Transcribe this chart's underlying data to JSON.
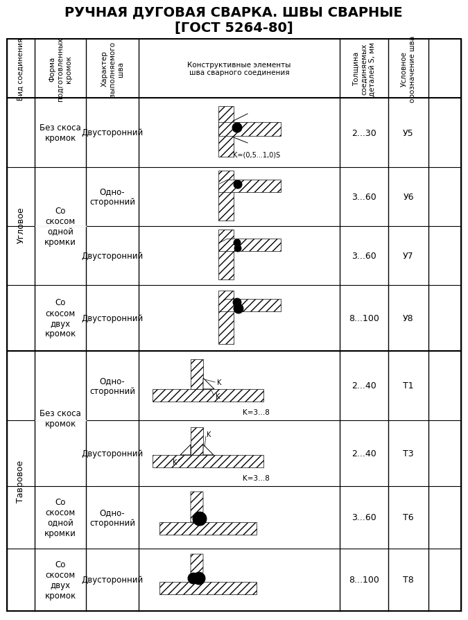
{
  "title_line1": "РУЧНАЯ ДУГОВАЯ СВАРКА. ШВЫ СВАРНЫЕ",
  "title_line2": "[ГОСТ 5264-80]",
  "header_col1": "Вид соединения",
  "header_col2": "Форма\nподготовленных\nкромок",
  "header_col3": "Характер\nвыполняемого\nшва",
  "header_col4": "Конструктивные элементы\nшва сварного соединения",
  "header_col5": "Толщина\nсоединяемых\nдеталей S, мм",
  "header_col6": "Условное\nобозначение шва",
  "bg_color": "#ffffff",
  "line_color": "#000000",
  "text_color": "#000000",
  "title_fontsize": 14,
  "header_fontsize": 8,
  "body_fontsize": 9,
  "rows": [
    {
      "vid": "Угловое",
      "vid_span": 4,
      "forma": "Без скоса\nкромок",
      "forma_span": 1,
      "kharakter": "Двусторонний",
      "thickness": "2...30",
      "designation": "У5",
      "annotation": "K=(0,5...1,0)S"
    },
    {
      "vid": "",
      "forma": "Со\nскосом\nодной\nкромки",
      "forma_span": 2,
      "kharakter": "Одно-\nсторонний",
      "thickness": "3...60",
      "designation": "У6",
      "annotation": ""
    },
    {
      "vid": "",
      "forma": "",
      "kharakter": "Двусторонний",
      "thickness": "3...60",
      "designation": "У7",
      "annotation": ""
    },
    {
      "vid": "",
      "forma": "Со\nскосом\nдвух\nкромок",
      "forma_span": 1,
      "kharakter": "Двусторонний",
      "thickness": "8...100",
      "designation": "У8",
      "annotation": ""
    },
    {
      "vid": "Тавровое",
      "vid_span": 4,
      "forma": "Без скоса\nкромок",
      "forma_span": 2,
      "kharakter": "Одно-\nсторонний",
      "thickness": "2...40",
      "designation": "Т1",
      "annotation": "K=3...8"
    },
    {
      "vid": "",
      "forma": "",
      "kharakter": "Двусторонний",
      "thickness": "2...40",
      "designation": "Т3",
      "annotation": "K=3...8"
    },
    {
      "vid": "",
      "forma": "Со\nскосом\nодной\nкромки",
      "forma_span": 1,
      "kharakter": "Одно-\nсторонний",
      "thickness": "3...60",
      "designation": "Т6",
      "annotation": ""
    },
    {
      "vid": "",
      "forma": "Со\nскосом\nдвух\nкромок",
      "forma_span": 1,
      "kharakter": "Двусторонний",
      "thickness": "8...100",
      "designation": "Т8",
      "annotation": ""
    }
  ]
}
